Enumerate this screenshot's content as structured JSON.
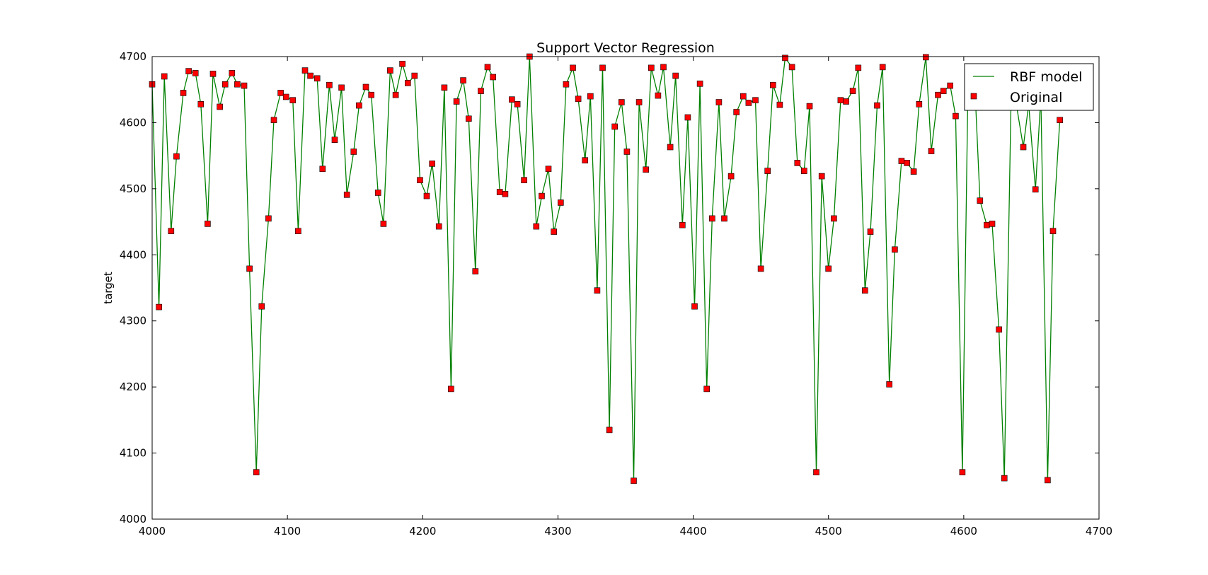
{
  "chart_data": {
    "type": "line",
    "title": "Support Vector Regression",
    "xlabel": "",
    "ylabel": "target",
    "xlim": [
      4000,
      4700
    ],
    "ylim": [
      4000,
      4700
    ],
    "xticks": [
      4000,
      4100,
      4200,
      4300,
      4400,
      4500,
      4600,
      4700
    ],
    "yticks": [
      4000,
      4100,
      4200,
      4300,
      4400,
      4500,
      4600,
      4700
    ],
    "grid": false,
    "legend": "top-right",
    "colors": {
      "model_line": "#008000",
      "original_marker": "#ff0000",
      "marker_edge": "#000000"
    },
    "series": [
      {
        "name": "RBF model",
        "style": "line",
        "x": [
          4000,
          4005,
          4009,
          4014,
          4018,
          4023,
          4027,
          4032,
          4036,
          4041,
          4045,
          4050,
          4054,
          4059,
          4063,
          4068,
          4072,
          4077,
          4081,
          4086,
          4090,
          4095,
          4099,
          4104,
          4108,
          4113,
          4117,
          4122,
          4126,
          4131,
          4135,
          4140,
          4144,
          4149,
          4153,
          4158,
          4162,
          4167,
          4171,
          4176,
          4180,
          4185,
          4189,
          4194,
          4198,
          4203,
          4207,
          4212,
          4216,
          4221,
          4225,
          4230,
          4234,
          4239,
          4243,
          4248,
          4252,
          4257,
          4261,
          4266,
          4270,
          4275,
          4279,
          4284,
          4288,
          4293,
          4297,
          4302,
          4306,
          4311,
          4315,
          4320,
          4324,
          4329,
          4333,
          4338,
          4342,
          4347,
          4351,
          4356,
          4360,
          4365,
          4369,
          4374,
          4378,
          4383,
          4387,
          4392,
          4396,
          4401,
          4405,
          4410,
          4414,
          4419,
          4423,
          4428,
          4432,
          4437,
          4441,
          4446,
          4450,
          4455,
          4459,
          4464,
          4468,
          4473,
          4477,
          4482,
          4486,
          4491,
          4495,
          4500,
          4504,
          4509,
          4513,
          4518,
          4522,
          4527,
          4531,
          4536,
          4540,
          4545,
          4549,
          4554,
          4558,
          4563,
          4567,
          4572,
          4576,
          4581,
          4585,
          4590,
          4594,
          4599,
          4603,
          4608,
          4612,
          4617,
          4621,
          4626,
          4630,
          4635,
          4639,
          4644,
          4648,
          4653,
          4657,
          4662,
          4666,
          4671
        ],
        "y": [
          4658,
          4321,
          4670,
          4436,
          4549,
          4645,
          4678,
          4675,
          4628,
          4447,
          4674,
          4624,
          4658,
          4675,
          4658,
          4656,
          4379,
          4071,
          4322,
          4455,
          4604,
          4645,
          4639,
          4634,
          4436,
          4679,
          4671,
          4667,
          4530,
          4657,
          4574,
          4653,
          4491,
          4556,
          4626,
          4654,
          4642,
          4494,
          4447,
          4679,
          4642,
          4689,
          4660,
          4671,
          4513,
          4489,
          4538,
          4443,
          4653,
          4197,
          4632,
          4664,
          4606,
          4375,
          4648,
          4684,
          4669,
          4495,
          4492,
          4635,
          4628,
          4513,
          4700,
          4443,
          4489,
          4530,
          4435,
          4479,
          4658,
          4683,
          4636,
          4543,
          4640,
          4346,
          4683,
          4135,
          4594,
          4631,
          4556,
          4058,
          4631,
          4529,
          4683,
          4641,
          4684,
          4563,
          4671,
          4445,
          4608,
          4322,
          4659,
          4197,
          4455,
          4631,
          4455,
          4519,
          4616,
          4640,
          4630,
          4634,
          4379,
          4527,
          4657,
          4627,
          4698,
          4684,
          4539,
          4527,
          4625,
          4071,
          4519,
          4379,
          4455,
          4634,
          4632,
          4648,
          4683,
          4346,
          4435,
          4626,
          4684,
          4204,
          4408,
          4542,
          4539,
          4526,
          4628,
          4699,
          4557,
          4642,
          4648,
          4656,
          4610,
          4071,
          4640,
          4666,
          4482,
          4445,
          4447,
          4287,
          4062,
          4640,
          4626,
          4563,
          4628,
          4499,
          4640,
          4059,
          4436,
          4604
        ]
      },
      {
        "name": "Original",
        "style": "marker",
        "x": [
          4000,
          4005,
          4009,
          4014,
          4018,
          4023,
          4027,
          4032,
          4036,
          4041,
          4045,
          4050,
          4054,
          4059,
          4063,
          4068,
          4072,
          4077,
          4081,
          4086,
          4090,
          4095,
          4099,
          4104,
          4108,
          4113,
          4117,
          4122,
          4126,
          4131,
          4135,
          4140,
          4144,
          4149,
          4153,
          4158,
          4162,
          4167,
          4171,
          4176,
          4180,
          4185,
          4189,
          4194,
          4198,
          4203,
          4207,
          4212,
          4216,
          4221,
          4225,
          4230,
          4234,
          4239,
          4243,
          4248,
          4252,
          4257,
          4261,
          4266,
          4270,
          4275,
          4279,
          4284,
          4288,
          4293,
          4297,
          4302,
          4306,
          4311,
          4315,
          4320,
          4324,
          4329,
          4333,
          4338,
          4342,
          4347,
          4351,
          4356,
          4360,
          4365,
          4369,
          4374,
          4378,
          4383,
          4387,
          4392,
          4396,
          4401,
          4405,
          4410,
          4414,
          4419,
          4423,
          4428,
          4432,
          4437,
          4441,
          4446,
          4450,
          4455,
          4459,
          4464,
          4468,
          4473,
          4477,
          4482,
          4486,
          4491,
          4495,
          4500,
          4504,
          4509,
          4513,
          4518,
          4522,
          4527,
          4531,
          4536,
          4540,
          4545,
          4549,
          4554,
          4558,
          4563,
          4567,
          4572,
          4576,
          4581,
          4585,
          4590,
          4594,
          4599,
          4603,
          4608,
          4612,
          4617,
          4621,
          4626,
          4630,
          4635,
          4639,
          4644,
          4648,
          4653,
          4657,
          4662,
          4666,
          4671
        ],
        "y": [
          4658,
          4321,
          4670,
          4436,
          4549,
          4645,
          4678,
          4675,
          4628,
          4447,
          4674,
          4624,
          4658,
          4675,
          4658,
          4656,
          4379,
          4071,
          4322,
          4455,
          4604,
          4645,
          4639,
          4634,
          4436,
          4679,
          4671,
          4667,
          4530,
          4657,
          4574,
          4653,
          4491,
          4556,
          4626,
          4654,
          4642,
          4494,
          4447,
          4679,
          4642,
          4689,
          4660,
          4671,
          4513,
          4489,
          4538,
          4443,
          4653,
          4197,
          4632,
          4664,
          4606,
          4375,
          4648,
          4684,
          4669,
          4495,
          4492,
          4635,
          4628,
          4513,
          4700,
          4443,
          4489,
          4530,
          4435,
          4479,
          4658,
          4683,
          4636,
          4543,
          4640,
          4346,
          4683,
          4135,
          4594,
          4631,
          4556,
          4058,
          4631,
          4529,
          4683,
          4641,
          4684,
          4563,
          4671,
          4445,
          4608,
          4322,
          4659,
          4197,
          4455,
          4631,
          4455,
          4519,
          4616,
          4640,
          4630,
          4634,
          4379,
          4527,
          4657,
          4627,
          4698,
          4684,
          4539,
          4527,
          4625,
          4071,
          4519,
          4379,
          4455,
          4634,
          4632,
          4648,
          4683,
          4346,
          4435,
          4626,
          4684,
          4204,
          4408,
          4542,
          4539,
          4526,
          4628,
          4699,
          4557,
          4642,
          4648,
          4656,
          4610,
          4071,
          4640,
          4666,
          4482,
          4445,
          4447,
          4287,
          4062,
          4640,
          4626,
          4563,
          4628,
          4499,
          4640,
          4059,
          4436,
          4604
        ]
      }
    ]
  }
}
